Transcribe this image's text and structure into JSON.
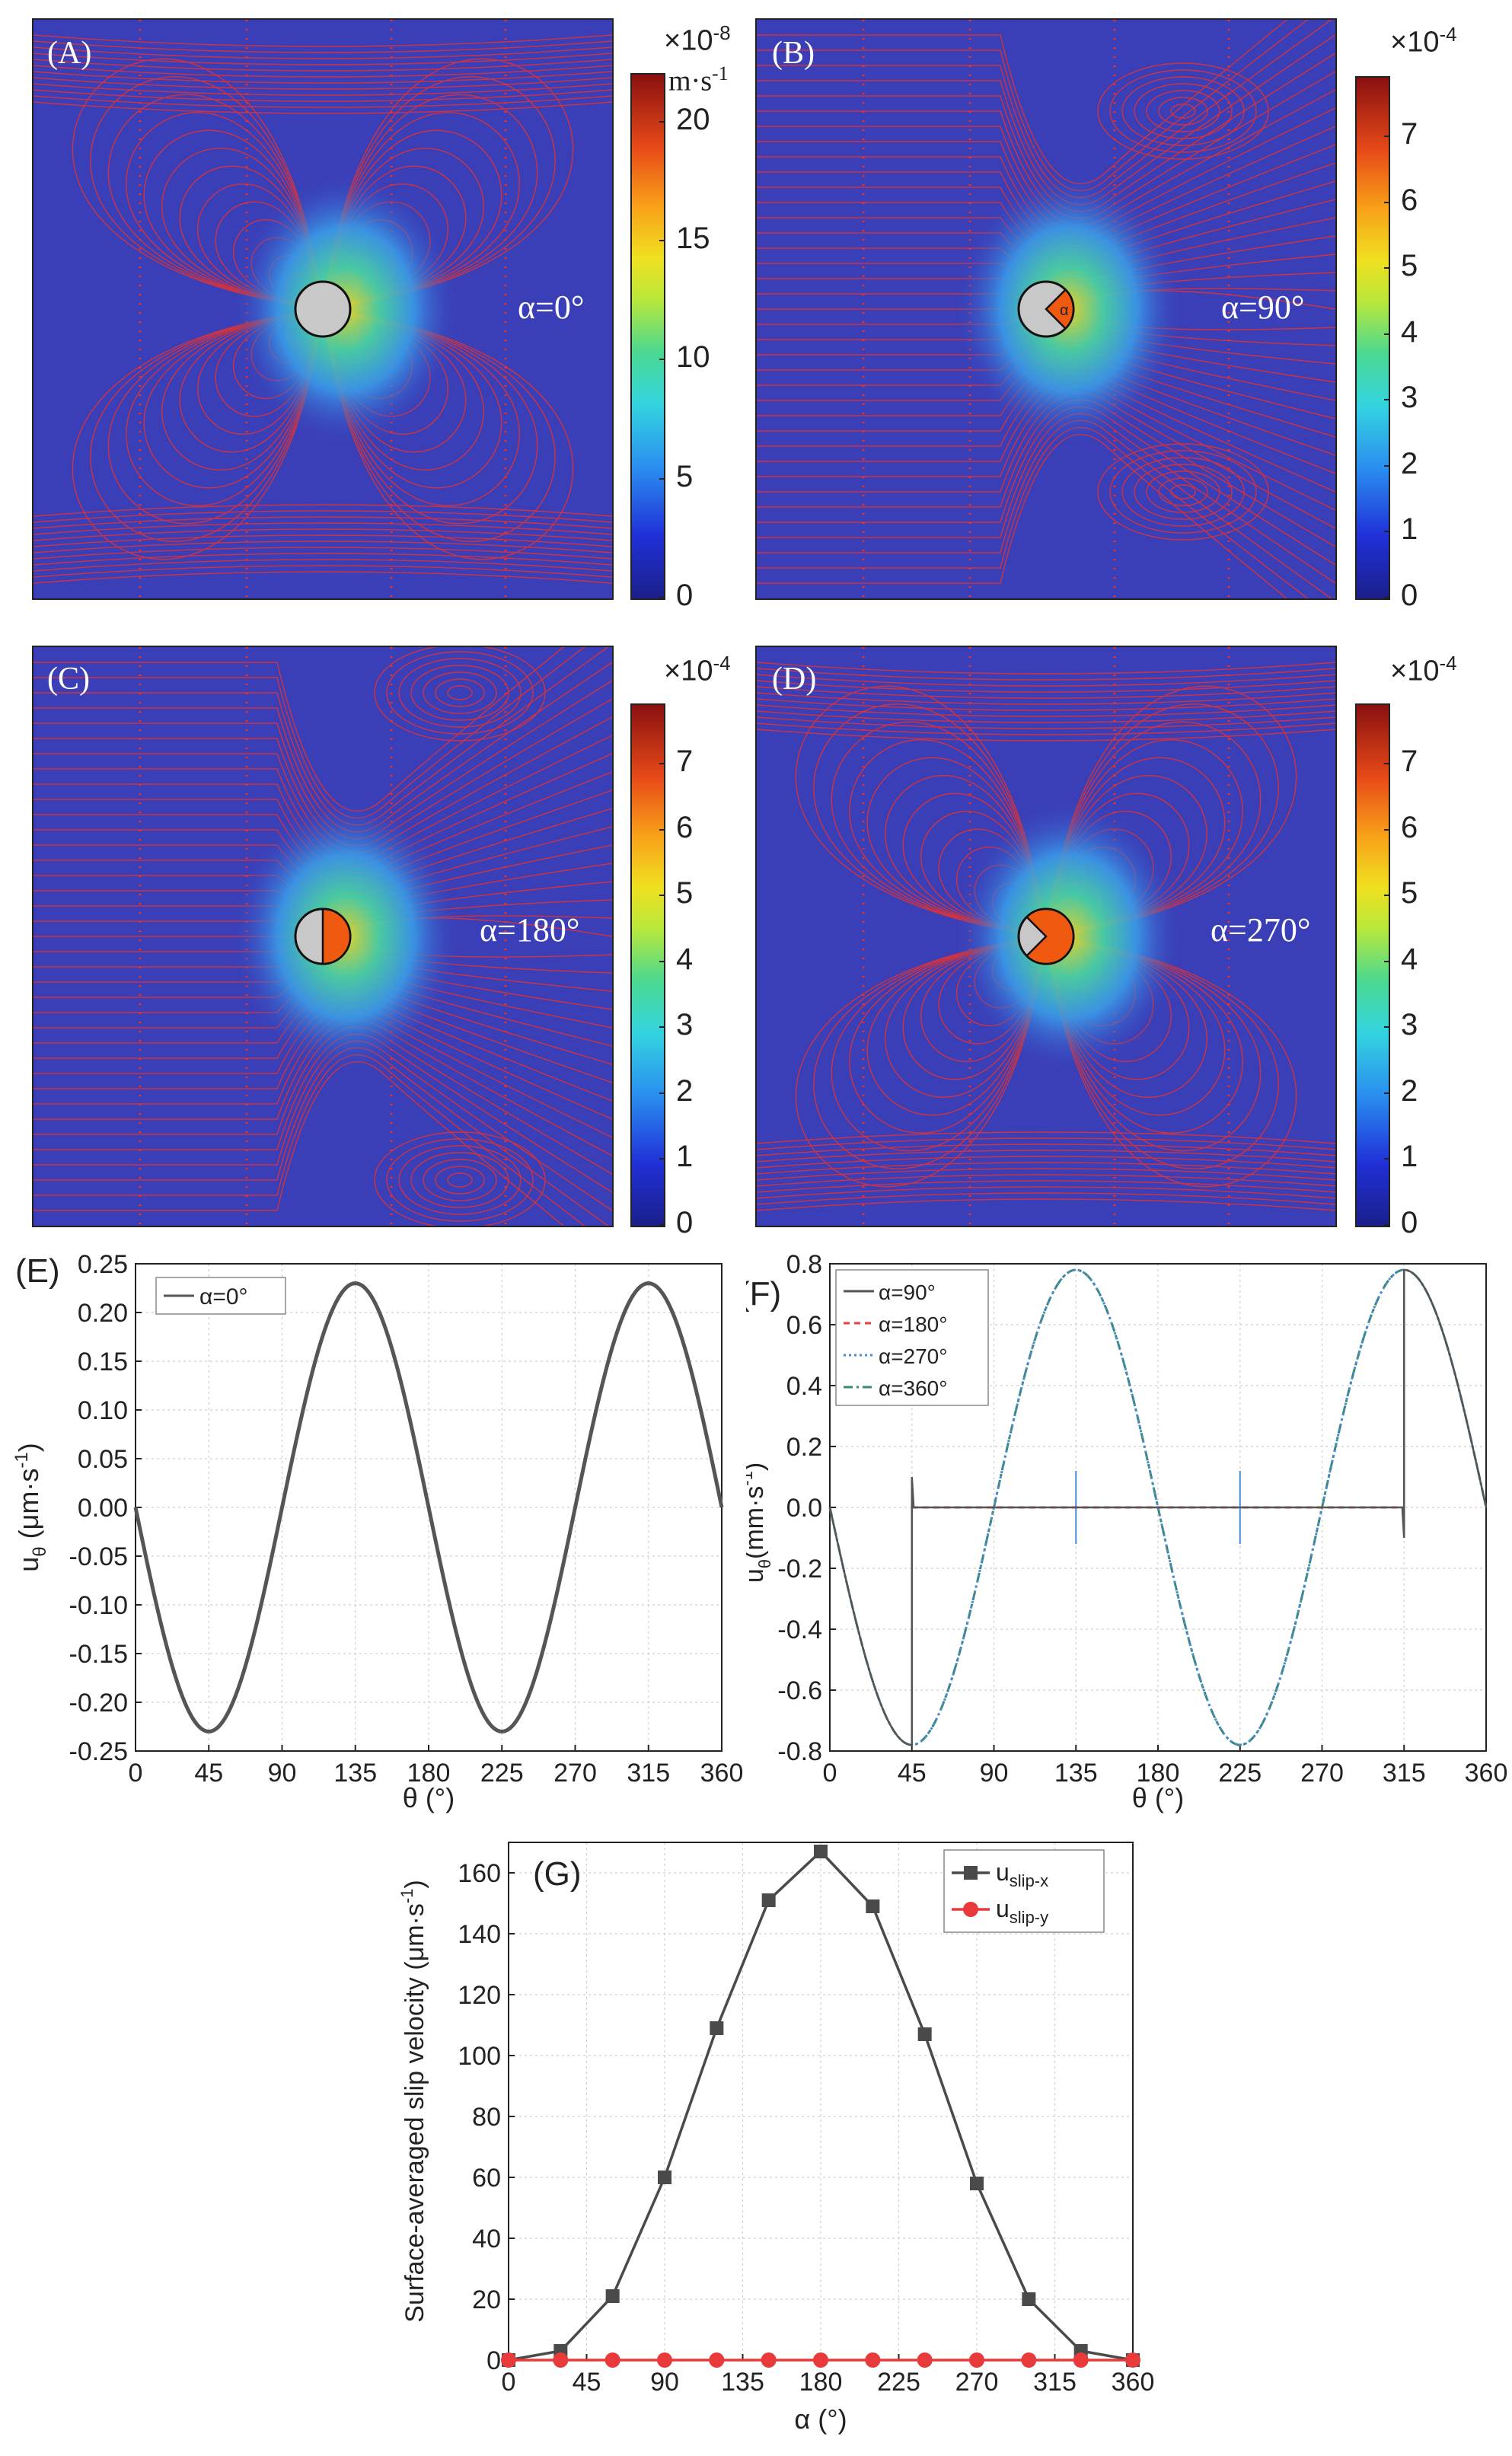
{
  "fields": [
    {
      "id": "A",
      "label": "(A)",
      "alpha": "α=0°",
      "multiplier": "×10",
      "exponent": "-8",
      "unit": "m·s",
      "unit_exp": "-1",
      "ticks": [
        "0",
        "5",
        "10",
        "15",
        "20"
      ],
      "tick_values": [
        0,
        5,
        10,
        15,
        20
      ],
      "vmax": 22,
      "lobes": "quad",
      "wedge": 0
    },
    {
      "id": "B",
      "label": "(B)",
      "alpha": "α=90°",
      "multiplier": "×10",
      "exponent": "-4",
      "unit": "",
      "unit_exp": "",
      "ticks": [
        "0",
        "1",
        "2",
        "3",
        "4",
        "5",
        "6",
        "7"
      ],
      "tick_values": [
        0,
        1,
        2,
        3,
        4,
        5,
        6,
        7
      ],
      "vmax": 7.9,
      "lobes": "right",
      "wedge": 90,
      "wedge_text": "α"
    },
    {
      "id": "C",
      "label": "(C)",
      "alpha": "α=180°",
      "multiplier": "×10",
      "exponent": "-4",
      "unit": "",
      "unit_exp": "",
      "ticks": [
        "0",
        "1",
        "2",
        "3",
        "4",
        "5",
        "6",
        "7"
      ],
      "tick_values": [
        0,
        1,
        2,
        3,
        4,
        5,
        6,
        7
      ],
      "vmax": 7.9,
      "lobes": "right",
      "wedge": 180
    },
    {
      "id": "D",
      "label": "(D)",
      "alpha": "α=270°",
      "multiplier": "×10",
      "exponent": "-4",
      "unit": "",
      "unit_exp": "",
      "ticks": [
        "0",
        "1",
        "2",
        "3",
        "4",
        "5",
        "6",
        "7"
      ],
      "tick_values": [
        0,
        1,
        2,
        3,
        4,
        5,
        6,
        7
      ],
      "vmax": 7.9,
      "lobes": "tri",
      "wedge": 270
    }
  ],
  "colors": {
    "field_bg": "#3a3fb8",
    "streamline": "#e8322e",
    "hot": "#c8102e"
  },
  "chart_data": [
    {
      "id": "E",
      "panel_label": "(E)",
      "type": "line",
      "xlabel": "θ (°)",
      "ylabel_main": "u",
      "ylabel_sub": "θ",
      "ylabel_unit": " (μm·s",
      "ylabel_unit_exp": "-1",
      "ylabel_end": ")",
      "xlim": [
        0,
        360
      ],
      "ylim": [
        -0.25,
        0.25
      ],
      "xticks": [
        0,
        45,
        90,
        135,
        180,
        225,
        270,
        315,
        360
      ],
      "xtick_labels": [
        "0",
        "45",
        "90",
        "135",
        "180",
        "225",
        "270",
        "315",
        "360"
      ],
      "yticks": [
        -0.25,
        -0.2,
        -0.15,
        -0.1,
        -0.05,
        0,
        0.05,
        0.1,
        0.15,
        0.2,
        0.25
      ],
      "ytick_labels": [
        "-0.25",
        "-0.20",
        "-0.15",
        "-0.10",
        "-0.05",
        "0.00",
        "0.05",
        "0.10",
        "0.15",
        "0.20",
        "0.25"
      ],
      "legend": [
        "α=0°"
      ],
      "series": [
        {
          "name": "α=0°",
          "function": "-0.23*sin(2θ)",
          "color": "#555555"
        }
      ]
    },
    {
      "id": "F",
      "panel_label": "(F)",
      "type": "line",
      "xlabel": "θ (°)",
      "ylabel_main": "u",
      "ylabel_sub": "θ",
      "ylabel_unit": "(mm·s",
      "ylabel_unit_exp": "-1",
      "ylabel_end": ")",
      "xlim": [
        0,
        360
      ],
      "ylim": [
        -0.8,
        0.8
      ],
      "xticks": [
        0,
        45,
        90,
        135,
        180,
        225,
        270,
        315,
        360
      ],
      "xtick_labels": [
        "0",
        "45",
        "90",
        "135",
        "180",
        "225",
        "270",
        "315",
        "360"
      ],
      "yticks": [
        -0.8,
        -0.6,
        -0.4,
        -0.2,
        0,
        0.2,
        0.4,
        0.6,
        0.8
      ],
      "ytick_labels": [
        "-0.8",
        "-0.6",
        "-0.4",
        "-0.2",
        "0.0",
        "0.2",
        "0.4",
        "0.6",
        "0.8"
      ],
      "legend": [
        "α=90°",
        "α=180°",
        "α=270°",
        "α=360°"
      ],
      "series": [
        {
          "name": "α=90°",
          "function": "-0.78*sin(2θ) outside [45,315], 0 inside",
          "color": "#555555",
          "dash": ""
        },
        {
          "name": "α=180°",
          "function": "0 on [45,315]",
          "color": "#e84040",
          "dash": "8,6"
        },
        {
          "name": "α=270°",
          "function": "-0.78*sin(2θ) with spikes at 135,225",
          "color": "#4a8ad8",
          "dash": "3,4"
        },
        {
          "name": "α=360°",
          "function": "-0.78*sin(2θ)",
          "color": "#3a8a6a",
          "dash": "12,5,3,5"
        }
      ]
    },
    {
      "id": "G",
      "panel_label": "(G)",
      "type": "line",
      "xlabel": "α (°)",
      "ylabel": "Surface-averaged slip velocity (μm·s",
      "ylabel_exp": "-1",
      "ylabel_end": ")",
      "xlim": [
        0,
        360
      ],
      "ylim": [
        0,
        170
      ],
      "xticks": [
        0,
        45,
        90,
        135,
        180,
        225,
        270,
        315,
        360
      ],
      "xtick_labels": [
        "0",
        "45",
        "90",
        "135",
        "180",
        "225",
        "270",
        "315",
        "360"
      ],
      "yticks": [
        0,
        20,
        40,
        60,
        80,
        100,
        120,
        140,
        160
      ],
      "ytick_labels": [
        "0",
        "20",
        "40",
        "60",
        "80",
        "100",
        "120",
        "140",
        "160"
      ],
      "x": [
        0,
        30,
        60,
        90,
        120,
        150,
        180,
        210,
        240,
        270,
        300,
        330,
        360
      ],
      "legend_main": "u",
      "series": [
        {
          "name": "uslip-x",
          "legend_sub": "slip-x",
          "values": [
            0,
            3,
            21,
            60,
            109,
            151,
            167,
            149,
            107,
            58,
            20,
            3,
            0
          ],
          "color": "#4a4a4a",
          "marker": "square"
        },
        {
          "name": "uslip-y",
          "legend_sub": "slip-y",
          "values": [
            0,
            0,
            0,
            0,
            0,
            0,
            0,
            0,
            0,
            0,
            0,
            0,
            0
          ],
          "color": "#e83a3a",
          "marker": "circle"
        }
      ]
    }
  ]
}
